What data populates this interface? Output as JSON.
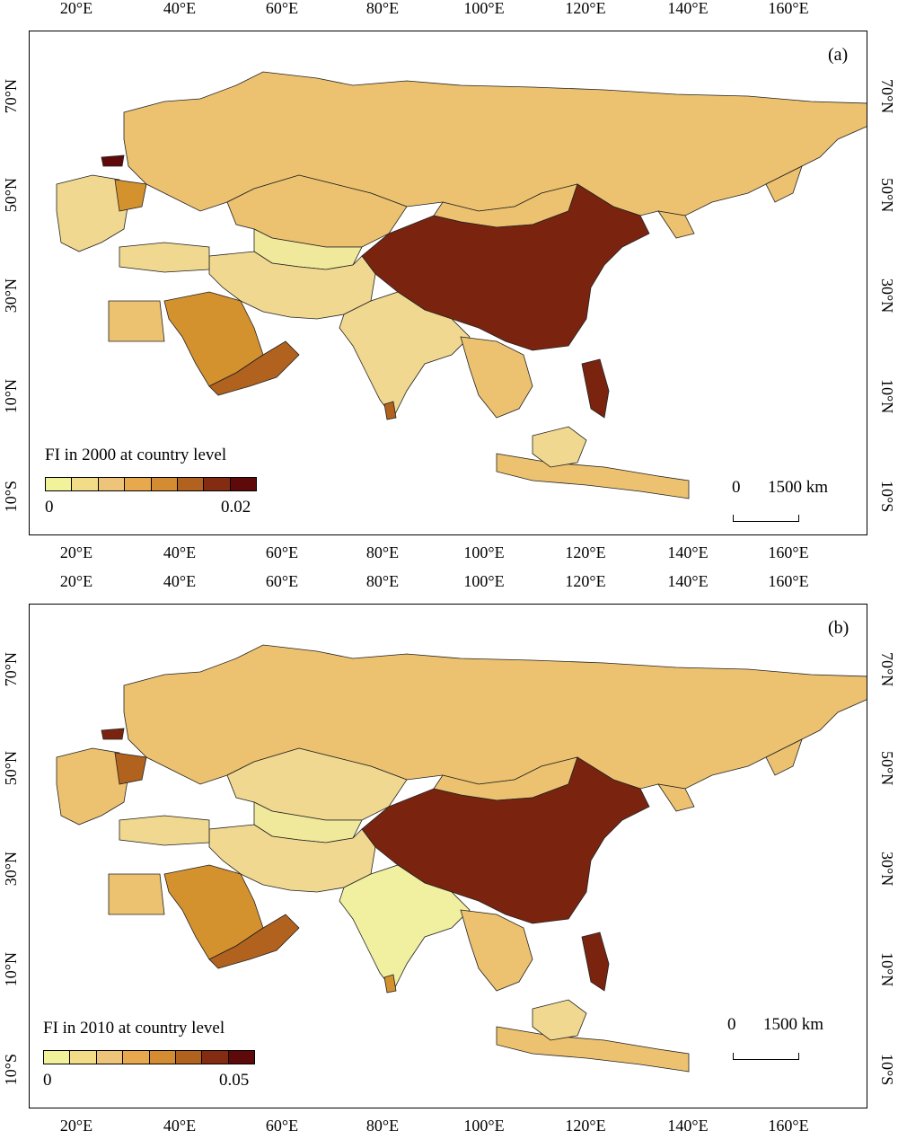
{
  "panels": [
    {
      "label": "(a)",
      "legend_title": "FI in 2000 at country level",
      "legend_min": "0",
      "legend_max": "0.02",
      "scale_zero": "0",
      "scale_text": "1500 km"
    },
    {
      "label": "(b)",
      "legend_title": "FI in 2010 at country level",
      "legend_min": "0",
      "legend_max": "0.05",
      "scale_zero": "0",
      "scale_text": "1500 km"
    }
  ],
  "axes": {
    "lon_ticks": [
      "20°E",
      "40°E",
      "60°E",
      "80°E",
      "100°E",
      "120°E",
      "140°E",
      "160°E"
    ],
    "lat_ticks": [
      "70°N",
      "50°N",
      "30°N",
      "10°N",
      "10°S"
    ]
  },
  "legend_colors": [
    "#f2f29a",
    "#f2dc88",
    "#eec47a",
    "#e8a94e",
    "#d48c32",
    "#b0621e",
    "#842c12",
    "#5e0a0a"
  ],
  "colors": {
    "russia": "#ecc270",
    "china": "#7a2410",
    "dark": "#7a2410",
    "mid": "#d4922e",
    "light": "#f0e89a",
    "pale": "#f0d890",
    "tan": "#ecc270"
  }
}
